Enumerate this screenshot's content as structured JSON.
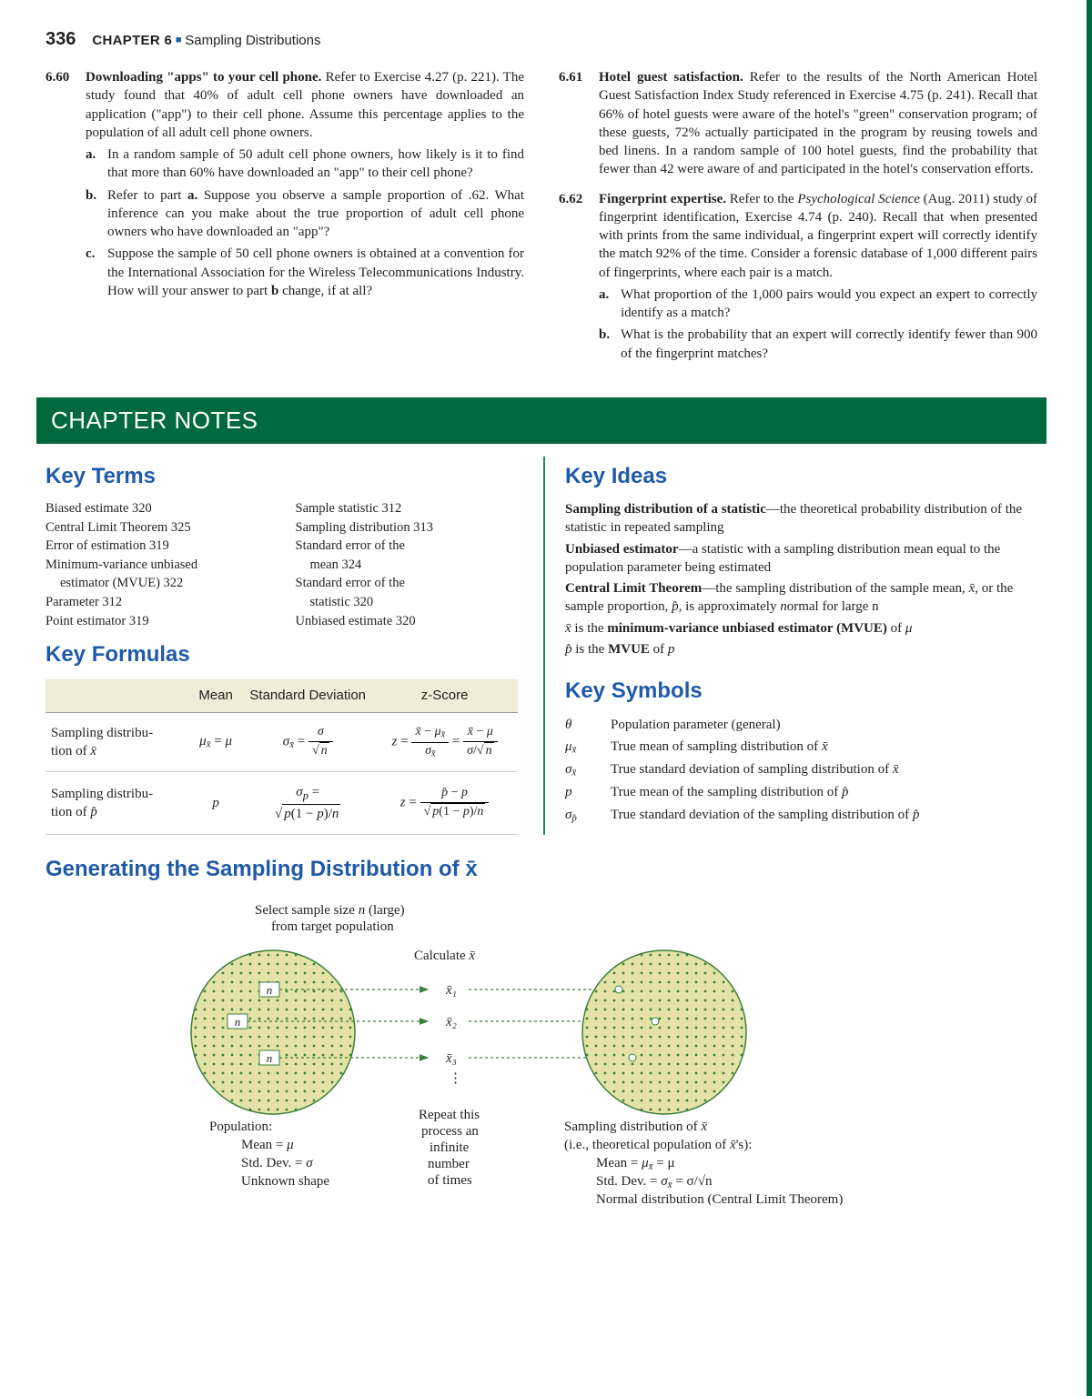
{
  "header": {
    "page_number": "336",
    "chapter": "CHAPTER 6",
    "title": "Sampling Distributions"
  },
  "exercises": [
    {
      "num": "6.60",
      "title": "Downloading \"apps\" to your cell phone.",
      "body": "Refer to Exercise 4.27 (p. 221). The study found that 40% of adult cell phone owners have downloaded an application (\"app\") to their cell phone. Assume this percentage applies to the population of all adult cell phone owners.",
      "subs": [
        {
          "label": "a.",
          "text": "In a random sample of 50 adult cell phone owners, how likely is it to find that more than 60% have downloaded an \"app\" to their cell phone?"
        },
        {
          "label": "b.",
          "text": "Refer to part a. Suppose you observe a sample proportion of .62. What inference can you make about the true proportion of adult cell phone owners who have downloaded an \"app\"?"
        },
        {
          "label": "c.",
          "text": "Suppose the sample of 50 cell phone owners is obtained at a convention for the International Association for the Wireless Telecommunications Industry. How will your answer to part b change, if at all?"
        }
      ]
    },
    {
      "num": "6.61",
      "title": "Hotel guest satisfaction.",
      "body": "Refer to the results of the North American Hotel Guest Satisfaction Index Study referenced in Exercise 4.75 (p. 241). Recall that 66% of hotel guests were aware of the hotel's \"green\" conservation program; of these guests, 72% actually participated in the program by reusing towels and bed linens. In a random sample of 100 hotel guests, find the probability that fewer than 42 were aware of and participated in the hotel's conservation efforts.",
      "subs": []
    },
    {
      "num": "6.62",
      "title": "Fingerprint expertise.",
      "body": "Refer to the Psychological Science (Aug. 2011) study of fingerprint identification, Exercise 4.74 (p. 240). Recall that when presented with prints from the same individual, a fingerprint expert will correctly identify the match 92% of the time. Consider a forensic database of 1,000 different pairs of fingerprints, where each pair is a match.",
      "subs": [
        {
          "label": "a.",
          "text": "What proportion of the 1,000 pairs would you expect an expert to correctly identify as a match?"
        },
        {
          "label": "b.",
          "text": "What is the probability that an expert will correctly identify fewer than 900 of the fingerprint matches?"
        }
      ]
    }
  ],
  "banner": "CHAPTER NOTES",
  "key_terms_heading": "Key Terms",
  "key_terms": {
    "col1": [
      "Biased estimate 320",
      "Central Limit Theorem 325",
      "Error of estimation 319",
      "Minimum-variance unbiased",
      "estimator (MVUE) 322",
      "Parameter 312",
      "Point estimator 319"
    ],
    "col2": [
      "Sample statistic 312",
      "Sampling distribution 313",
      "Standard error of the",
      "mean 324",
      "Standard error of the",
      "statistic 320",
      "Unbiased estimate 320"
    ]
  },
  "key_formulas_heading": "Key Formulas",
  "formulas_head": {
    "c1": "",
    "c2": "Mean",
    "c3": "Standard Deviation",
    "c4": "z-Score"
  },
  "formulas_row1_label": "Sampling distribution of x̄",
  "formulas_row2_label": "Sampling distribution of p̂",
  "key_ideas_heading": "Key Ideas",
  "ideas": [
    {
      "term": "Sampling distribution of a statistic",
      "text": "—the theoretical probability distribution of the statistic in repeated sampling"
    },
    {
      "term": "Unbiased estimator",
      "text": "—a statistic with a sampling distribution mean equal to the population parameter being estimated"
    },
    {
      "term": "Central Limit Theorem",
      "text": "—the sampling distribution of the sample mean, x̄, or the sample proportion, p̂, is approximately normal for large n"
    }
  ],
  "ideas_tail1": "x̄ is the minimum-variance unbiased estimator (MVUE) of μ",
  "ideas_tail2": "p̂ is the MVUE of p",
  "key_symbols_heading": "Key Symbols",
  "symbols": [
    {
      "sym": "θ",
      "desc": "Population parameter (general)"
    },
    {
      "sym": "μx̄",
      "desc": "True mean of sampling distribution of x̄"
    },
    {
      "sym": "σx̄",
      "desc": "True standard deviation of sampling distribution of x̄"
    },
    {
      "sym": "p",
      "desc": "True mean of the sampling distribution of p̂"
    },
    {
      "sym": "σp̂",
      "desc": "True standard deviation of the sampling distribution of p̂"
    }
  ],
  "gen_heading": "Generating the Sampling Distribution of x̄",
  "diagram": {
    "top_text": "Select sample size n (large)\n      from target population",
    "calc": "Calculate x̄",
    "xs": [
      "x̄₁",
      "x̄₂",
      "x̄₃",
      "⋮"
    ],
    "repeat": "Repeat this process an infinite number of times",
    "pop_label": "Population:",
    "pop_lines": [
      "Mean = μ",
      "Std. Dev. = σ",
      "Unknown shape"
    ],
    "samp_label": "Sampling distribution of x̄",
    "samp_sub": "(i.e., theoretical population of x̄'s):",
    "samp_lines": [
      "Mean = μx̄ = μ",
      "Std. Dev. = σx̄ = σ/√n",
      "Normal distribution (Central Limit Theorem)"
    ],
    "colors": {
      "circle_fill": "#e5e2a8",
      "circle_stroke": "#3a7f3a",
      "arrow": "#3a7f3a",
      "text": "#231f20"
    }
  }
}
